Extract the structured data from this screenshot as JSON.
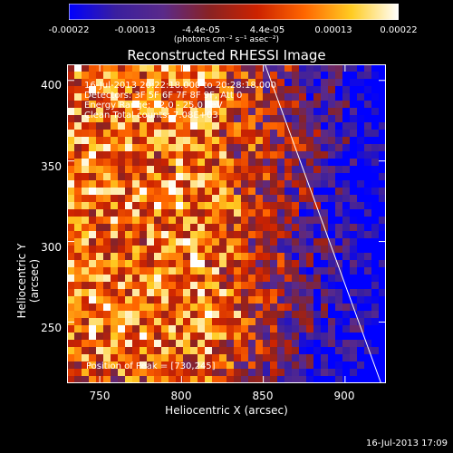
{
  "colorbar": {
    "ticks": [
      "-0.00022",
      "-0.00013",
      "-4.4e-05",
      "4.4e-05",
      "0.00013",
      "0.00022"
    ],
    "label": "(photons cm⁻² s⁻¹ asec⁻²)",
    "colormap": [
      "#0000ff",
      "#3a1f9f",
      "#5a2a8a",
      "#8a2222",
      "#cc2200",
      "#ff6600",
      "#ffcc22",
      "#ffffff"
    ]
  },
  "title": "Reconstructed RHESSI Image",
  "annotations": {
    "time_range": "16-Jul-2013 20:22:18.000 to 20:28:18.000",
    "detectors": "Detectors: 3F 5F 6F 7F 8F 9F, Att 0",
    "energy": "Energy Range: 12.0 - 25.0 keV",
    "clean": "Clean     Total counts: 7.08E+03",
    "peak": "Position of Peak = [730,245]"
  },
  "footer": "16-Jul-2013 17:09",
  "chart_data": {
    "type": "heatmap",
    "xlabel": "Heliocentric X (arcsec)",
    "ylabel": "Heliocentric Y (arcsec)",
    "xlim": [
      730,
      925
    ],
    "ylim": [
      212,
      410
    ],
    "x_ticks": [
      "750",
      "800",
      "850",
      "900"
    ],
    "y_ticks": [
      "250",
      "300",
      "350",
      "400"
    ],
    "clim": [
      -0.00022,
      0.00022
    ],
    "limb_line": [
      [
        851,
        410
      ],
      [
        922,
        212
      ]
    ],
    "peak_position": [
      730,
      245
    ]
  }
}
